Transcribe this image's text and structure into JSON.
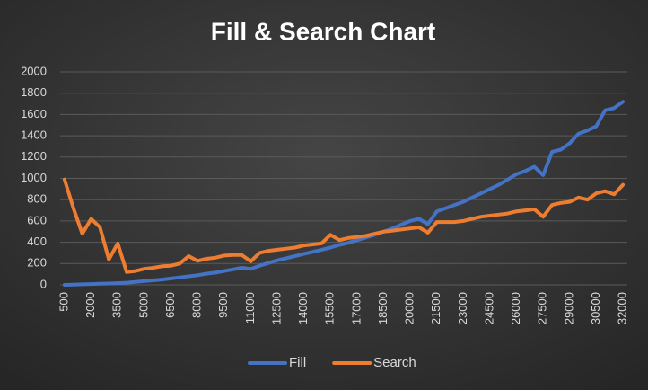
{
  "chart_data": {
    "type": "line",
    "title": "Fill & Search Chart",
    "categories": [
      "500",
      null,
      null,
      "2000",
      null,
      null,
      "3500",
      null,
      null,
      "5000",
      null,
      null,
      "6500",
      null,
      null,
      "8000",
      null,
      null,
      "9500",
      null,
      null,
      "11000",
      null,
      null,
      "12500",
      null,
      null,
      "14000",
      null,
      null,
      "15500",
      null,
      null,
      "17000",
      null,
      null,
      "18500",
      null,
      null,
      "20000",
      null,
      null,
      "21500",
      null,
      null,
      "23000",
      null,
      null,
      "24500",
      null,
      null,
      "26000",
      null,
      null,
      "27500",
      null,
      null,
      "29000",
      null,
      null,
      "30500",
      null,
      null,
      "32000"
    ],
    "series": [
      {
        "name": "Fill",
        "color": "#4472c4",
        "values": [
          0,
          2,
          5,
          8,
          10,
          13,
          16,
          20,
          28,
          35,
          42,
          50,
          60,
          70,
          80,
          90,
          105,
          115,
          130,
          145,
          160,
          150,
          180,
          205,
          230,
          250,
          270,
          290,
          310,
          330,
          350,
          375,
          395,
          420,
          445,
          470,
          500,
          530,
          565,
          600,
          620,
          570,
          690,
          720,
          750,
          780,
          820,
          860,
          900,
          940,
          990,
          1040,
          1070,
          1110,
          1030,
          1250,
          1270,
          1330,
          1420,
          1450,
          1490,
          1640,
          1660,
          1720
        ]
      },
      {
        "name": "Search",
        "color": "#ed7d31",
        "values": [
          990,
          720,
          480,
          620,
          540,
          240,
          390,
          120,
          130,
          150,
          160,
          175,
          180,
          200,
          270,
          225,
          245,
          255,
          275,
          280,
          280,
          220,
          300,
          320,
          330,
          340,
          350,
          370,
          380,
          390,
          470,
          420,
          440,
          450,
          460,
          480,
          500,
          510,
          520,
          530,
          540,
          490,
          590,
          590,
          590,
          600,
          620,
          640,
          650,
          660,
          670,
          690,
          700,
          710,
          640,
          750,
          770,
          780,
          820,
          800,
          860,
          880,
          850,
          940
        ]
      }
    ],
    "ylim": [
      0,
      2000
    ],
    "yticks": [
      0,
      200,
      400,
      600,
      800,
      1000,
      1200,
      1400,
      1600,
      1800,
      2000
    ],
    "grid": true,
    "legend": "bottom"
  }
}
